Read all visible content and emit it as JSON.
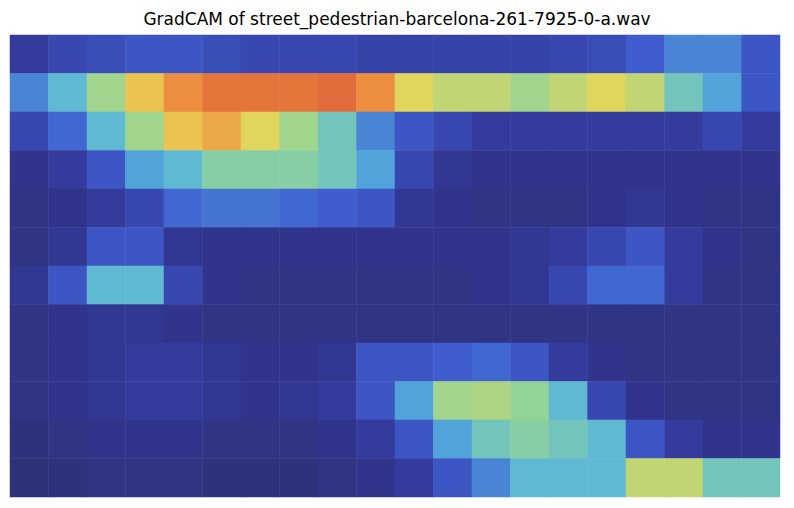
{
  "chart_data": {
    "type": "heatmap",
    "title": "GradCAM of street_pedestrian-barcelona-261-7925-0-a.wav",
    "tick_labels": false,
    "zlim": [
      0,
      1
    ],
    "cells": [
      [
        0.15,
        0.2,
        0.22,
        0.25,
        0.25,
        0.22,
        0.2,
        0.2,
        0.2,
        0.18,
        0.18,
        0.18,
        0.18,
        0.18,
        0.2,
        0.22,
        0.28,
        0.35,
        0.35,
        0.25
      ],
      [
        0.35,
        0.45,
        0.6,
        0.75,
        0.85,
        0.9,
        0.9,
        0.9,
        0.92,
        0.85,
        0.7,
        0.65,
        0.65,
        0.6,
        0.65,
        0.7,
        0.65,
        0.5,
        0.4,
        0.25
      ],
      [
        0.2,
        0.3,
        0.45,
        0.6,
        0.75,
        0.8,
        0.7,
        0.6,
        0.5,
        0.35,
        0.25,
        0.2,
        0.15,
        0.15,
        0.15,
        0.15,
        0.15,
        0.15,
        0.2,
        0.15
      ],
      [
        0.1,
        0.15,
        0.25,
        0.4,
        0.45,
        0.55,
        0.55,
        0.55,
        0.5,
        0.4,
        0.2,
        0.12,
        0.1,
        0.1,
        0.1,
        0.1,
        0.1,
        0.1,
        0.1,
        0.1
      ],
      [
        0.08,
        0.1,
        0.15,
        0.2,
        0.3,
        0.32,
        0.32,
        0.3,
        0.28,
        0.25,
        0.12,
        0.1,
        0.08,
        0.08,
        0.08,
        0.1,
        0.12,
        0.1,
        0.08,
        0.08
      ],
      [
        0.08,
        0.12,
        0.25,
        0.25,
        0.12,
        0.1,
        0.1,
        0.1,
        0.1,
        0.1,
        0.1,
        0.1,
        0.1,
        0.12,
        0.15,
        0.2,
        0.25,
        0.15,
        0.1,
        0.08
      ],
      [
        0.12,
        0.25,
        0.45,
        0.45,
        0.2,
        0.1,
        0.08,
        0.08,
        0.08,
        0.08,
        0.08,
        0.08,
        0.1,
        0.12,
        0.2,
        0.3,
        0.3,
        0.15,
        0.08,
        0.08
      ],
      [
        0.08,
        0.1,
        0.12,
        0.12,
        0.1,
        0.08,
        0.08,
        0.08,
        0.08,
        0.08,
        0.08,
        0.08,
        0.08,
        0.08,
        0.08,
        0.08,
        0.08,
        0.08,
        0.08,
        0.08
      ],
      [
        0.08,
        0.1,
        0.12,
        0.15,
        0.15,
        0.12,
        0.1,
        0.1,
        0.12,
        0.25,
        0.25,
        0.28,
        0.3,
        0.25,
        0.15,
        0.1,
        0.08,
        0.08,
        0.08,
        0.08
      ],
      [
        0.08,
        0.1,
        0.12,
        0.15,
        0.15,
        0.12,
        0.1,
        0.12,
        0.15,
        0.25,
        0.4,
        0.6,
        0.62,
        0.58,
        0.45,
        0.2,
        0.1,
        0.08,
        0.08,
        0.08
      ],
      [
        0.06,
        0.08,
        0.1,
        0.1,
        0.1,
        0.08,
        0.08,
        0.08,
        0.1,
        0.15,
        0.25,
        0.4,
        0.5,
        0.55,
        0.5,
        0.45,
        0.25,
        0.15,
        0.1,
        0.1
      ],
      [
        0.05,
        0.06,
        0.08,
        0.08,
        0.08,
        0.06,
        0.06,
        0.06,
        0.08,
        0.1,
        0.15,
        0.25,
        0.35,
        0.45,
        0.45,
        0.45,
        0.65,
        0.65,
        0.5,
        0.5
      ]
    ]
  }
}
